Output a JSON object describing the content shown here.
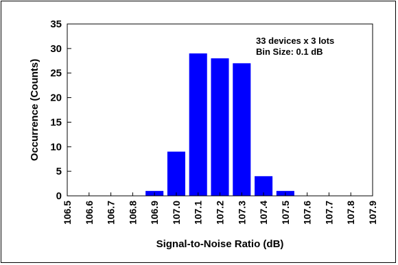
{
  "chart_data": {
    "type": "bar",
    "title": "",
    "xlabel": "Signal-to-Noise Ratio (dB)",
    "ylabel": "Occurrence (Counts)",
    "x_ticks": [
      "106.5",
      "106.6",
      "106.7",
      "106.8",
      "106.9",
      "107.0",
      "107.1",
      "107.2",
      "107.3",
      "107.4",
      "107.5",
      "107.6",
      "107.7",
      "107.8",
      "107.9"
    ],
    "xlim": [
      106.5,
      107.9
    ],
    "ylim": [
      0,
      35
    ],
    "y_ticks": [
      0,
      5,
      10,
      15,
      20,
      25,
      30,
      35
    ],
    "bins": [
      {
        "x": 106.9,
        "value": 1
      },
      {
        "x": 107.0,
        "value": 9
      },
      {
        "x": 107.1,
        "value": 29
      },
      {
        "x": 107.2,
        "value": 28
      },
      {
        "x": 107.3,
        "value": 27
      },
      {
        "x": 107.4,
        "value": 4
      },
      {
        "x": 107.5,
        "value": 1
      }
    ],
    "annotations": [
      "33 devices x 3 lots",
      "Bin Size: 0.1 dB"
    ],
    "bar_color": "#0000ff",
    "grid": false,
    "legend": "none"
  }
}
